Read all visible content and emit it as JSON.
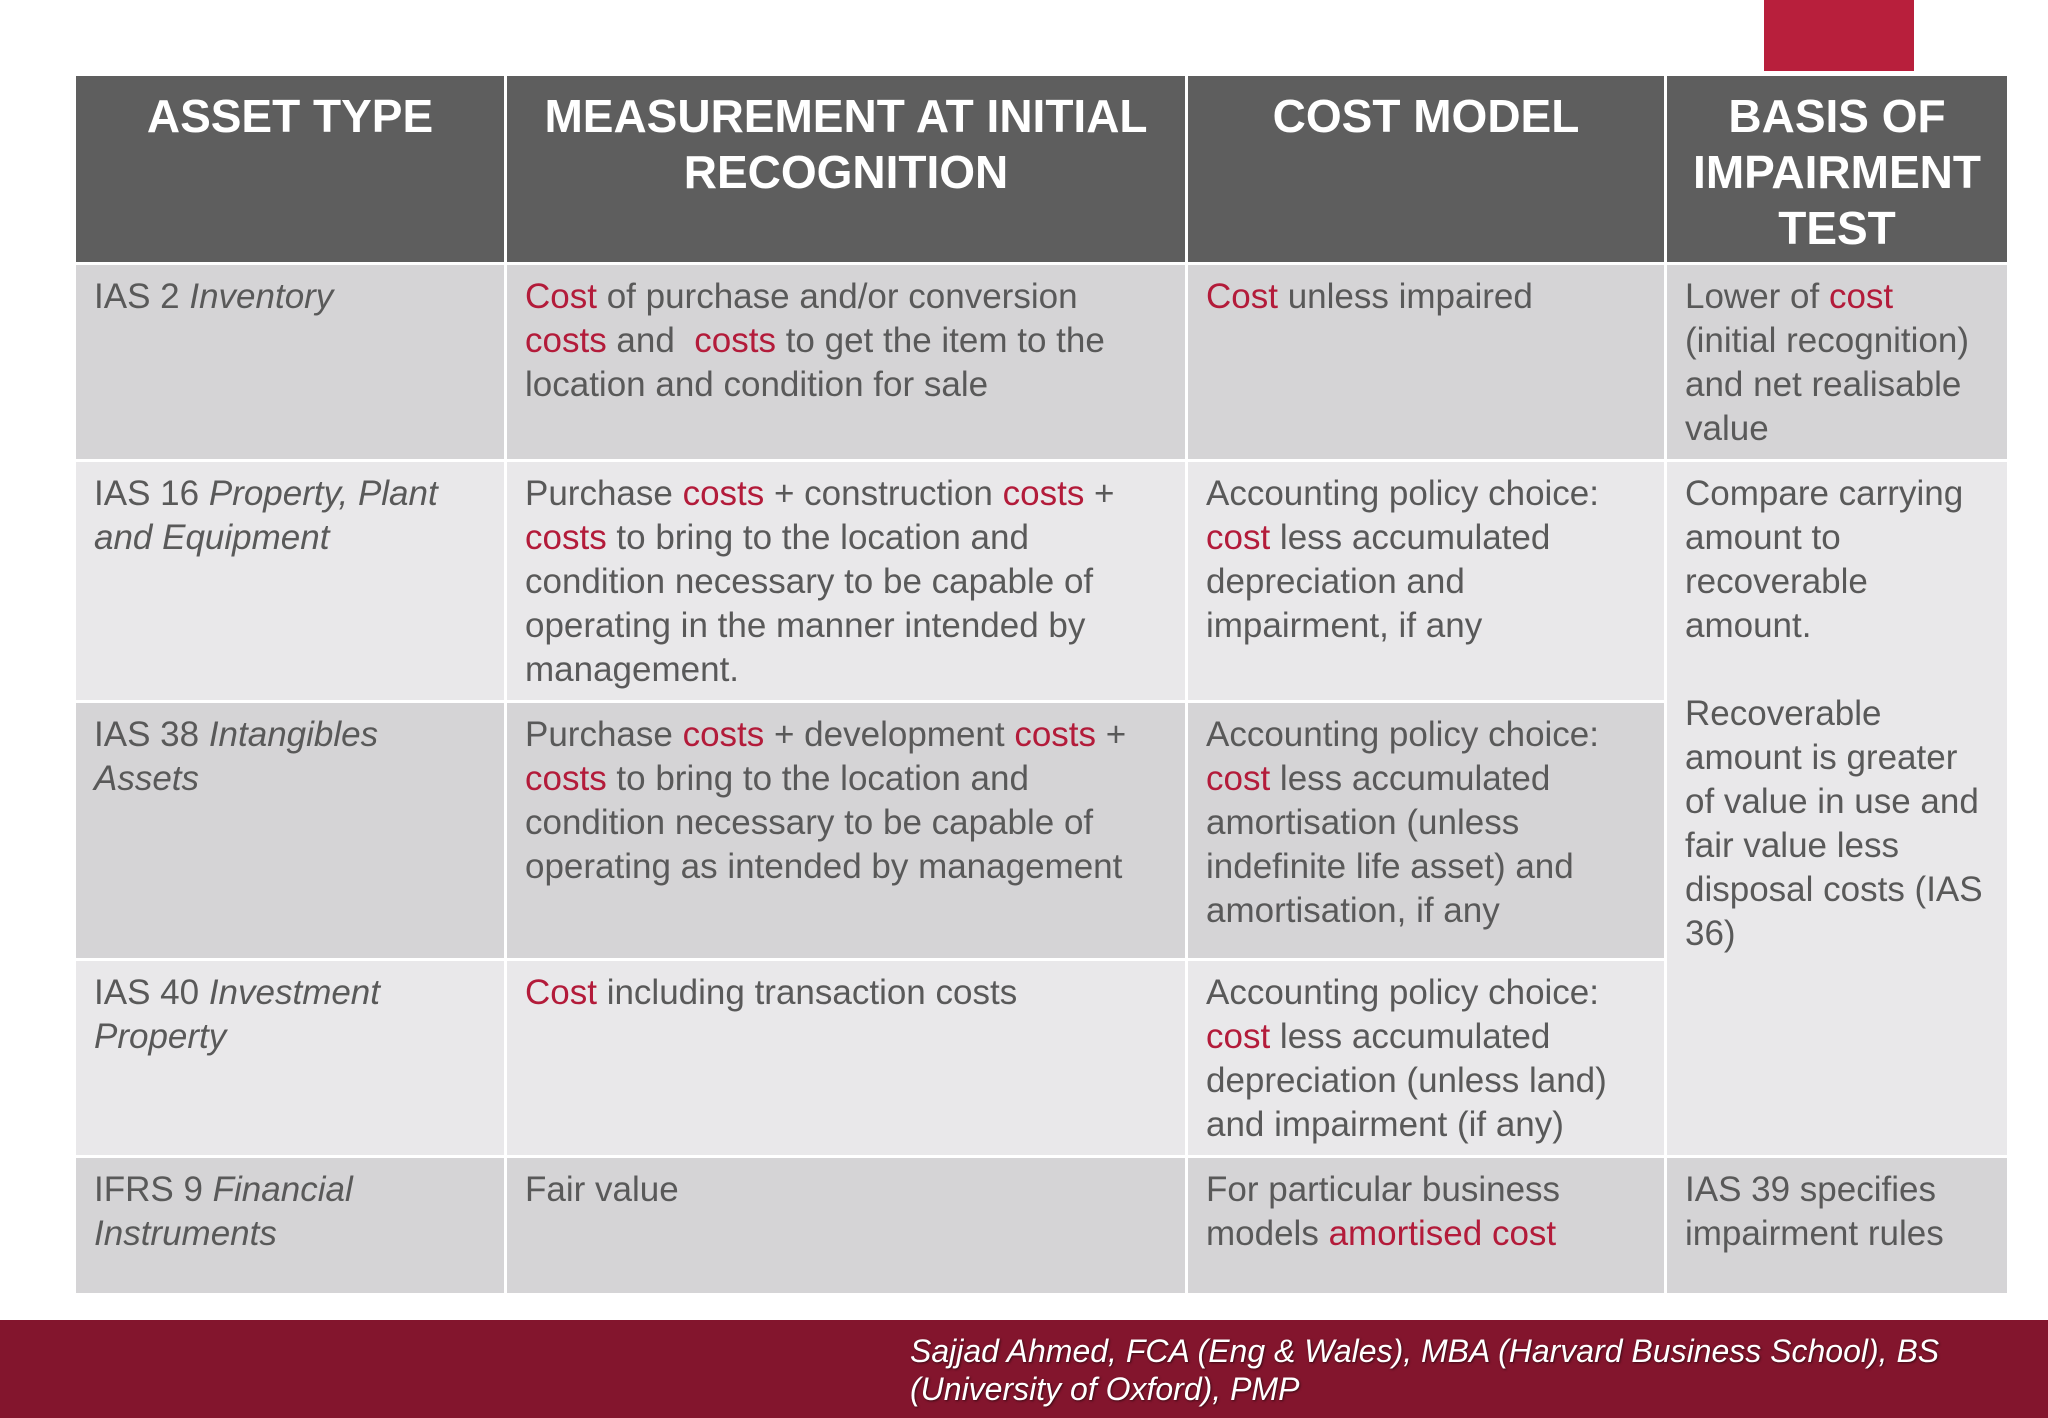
{
  "headers": [
    "ASSET TYPE",
    "MEASUREMENT AT INITIAL RECOGNITION",
    "COST MODEL",
    "BASIS OF IMPAIRMENT TEST"
  ],
  "rows": [
    {
      "asset_code": "IAS 2",
      "asset_name": "Inventory",
      "measurement": {
        "t1": "Cost",
        "t2": " of purchase and/or conversion ",
        "t3": "costs",
        "t4": " and  ",
        "t5": "costs",
        "t6": " to get the item to the location and condition for sale"
      },
      "cost_model": {
        "t1": "Cost",
        "t2": " unless impaired"
      },
      "impairment": {
        "t1": "Lower of ",
        "t2": "cost",
        "t3": " (initial recognition) and net realisable value"
      }
    },
    {
      "asset_code": "IAS 16",
      "asset_name": "Property, Plant and Equipment",
      "measurement": {
        "t1": "Purchase ",
        "t2": "costs",
        "t3": " + construction ",
        "t4": "costs",
        "t5": " + ",
        "t6": "costs",
        "t7": " to bring to the location and condition necessary to be capable of operating in the manner intended by management."
      },
      "cost_model": {
        "t1": "Accounting policy choice: ",
        "t2": "cost",
        "t3": " less accumulated depreciation and impairment, if any"
      },
      "impairment": {
        "p1": "Compare carrying amount to recoverable amount.",
        "p2": "Recoverable amount is greater of value in use and fair value less disposal costs (IAS 36)"
      }
    },
    {
      "asset_code": "IAS 38",
      "asset_name": "Intangibles Assets",
      "measurement": {
        "t1": "Purchase ",
        "t2": "costs",
        "t3": " + development ",
        "t4": "costs",
        "t5": " + ",
        "t6": "costs",
        "t7": " to bring to the location and condition necessary to be capable of operating as intended by management"
      },
      "cost_model": {
        "t1": "Accounting policy choice: ",
        "t2": "cost",
        "t3": " less accumulated amortisation (unless indefinite life asset) and amortisation, if any"
      }
    },
    {
      "asset_code": "IAS 40",
      "asset_name": "Investment Property",
      "measurement": {
        "t1": "Cost",
        "t2": " including transaction costs"
      },
      "cost_model": {
        "t1": "Accounting policy choice: ",
        "t2": "cost",
        "t3": " less accumulated depreciation (unless land) and impairment (if any)"
      }
    },
    {
      "asset_code": "IFRS 9",
      "asset_name": "Financial Instruments",
      "measurement": {
        "t1": "Fair value"
      },
      "cost_model": {
        "t1": "For particular business models ",
        "t2": "amortised cost"
      },
      "impairment": {
        "t1": "IAS 39 specifies impairment rules"
      }
    }
  ],
  "footer": {
    "credit": "Sajjad Ahmed, FCA (Eng & Wales), MBA (Harvard Business School), BS (University of Oxford), PMP"
  },
  "colors": {
    "header_bg": "#5e5e5e",
    "row_dark": "#d5d4d6",
    "row_light": "#e9e8ea",
    "highlight_text": "#b31b3a",
    "footer_bg": "#83152d",
    "accent_tab": "#b81f3c"
  }
}
